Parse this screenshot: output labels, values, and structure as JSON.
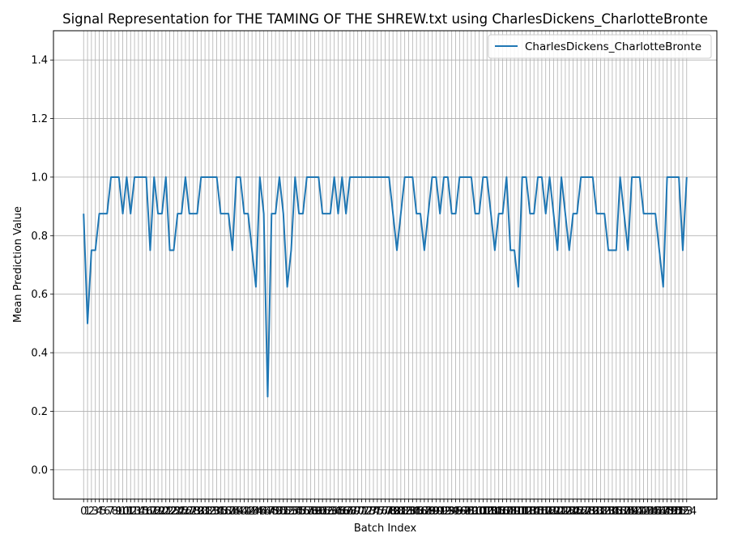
{
  "chart_data": {
    "type": "line",
    "title": "Signal Representation for THE TAMING OF THE SHREW.txt using CharlesDickens_CharlotteBronte",
    "xlabel": "Batch Index",
    "ylabel": "Mean Prediction Value",
    "ylim": [
      -0.1,
      1.5
    ],
    "yticks": [
      0.0,
      0.2,
      0.4,
      0.6,
      0.8,
      1.0,
      1.2,
      1.4
    ],
    "grid": true,
    "legend": "top-right",
    "x_tick_step": 1,
    "series": [
      {
        "name": "CharlesDickens_CharlotteBronte",
        "color": "#1f77b4",
        "values": [
          0.875,
          0.5,
          0.75,
          0.75,
          0.875,
          0.875,
          0.875,
          1.0,
          1.0,
          1.0,
          0.875,
          1.0,
          0.875,
          1.0,
          1.0,
          1.0,
          1.0,
          0.75,
          1.0,
          0.875,
          0.875,
          1.0,
          0.75,
          0.75,
          0.875,
          0.875,
          1.0,
          0.875,
          0.875,
          0.875,
          1.0,
          1.0,
          1.0,
          1.0,
          1.0,
          0.875,
          0.875,
          0.875,
          0.75,
          1.0,
          1.0,
          0.875,
          0.875,
          0.75,
          0.625,
          1.0,
          0.875,
          0.25,
          0.875,
          0.875,
          1.0,
          0.875,
          0.625,
          0.75,
          1.0,
          0.875,
          0.875,
          1.0,
          1.0,
          1.0,
          1.0,
          0.875,
          0.875,
          0.875,
          1.0,
          0.875,
          1.0,
          0.875,
          1.0,
          1.0,
          1.0,
          1.0,
          1.0,
          1.0,
          1.0,
          1.0,
          1.0,
          1.0,
          1.0,
          0.875,
          0.75,
          0.875,
          1.0,
          1.0,
          1.0,
          0.875,
          0.875,
          0.75,
          0.875,
          1.0,
          1.0,
          0.875,
          1.0,
          1.0,
          0.875,
          0.875,
          1.0,
          1.0,
          1.0,
          1.0,
          0.875,
          0.875,
          1.0,
          1.0,
          0.875,
          0.75,
          0.875,
          0.875,
          1.0,
          0.75,
          0.75,
          0.625,
          1.0,
          1.0,
          0.875,
          0.875,
          1.0,
          1.0,
          0.875,
          1.0,
          0.875,
          0.75,
          1.0,
          0.875,
          0.75,
          0.875,
          0.875,
          1.0,
          1.0,
          1.0,
          1.0,
          0.875,
          0.875,
          0.875,
          0.75,
          0.75,
          0.75,
          1.0,
          0.875,
          0.75,
          1.0,
          1.0,
          1.0,
          0.875,
          0.875,
          0.875,
          0.875,
          0.75,
          0.625,
          1.0,
          1.0,
          1.0,
          1.0,
          0.75,
          1.0
        ]
      }
    ]
  }
}
